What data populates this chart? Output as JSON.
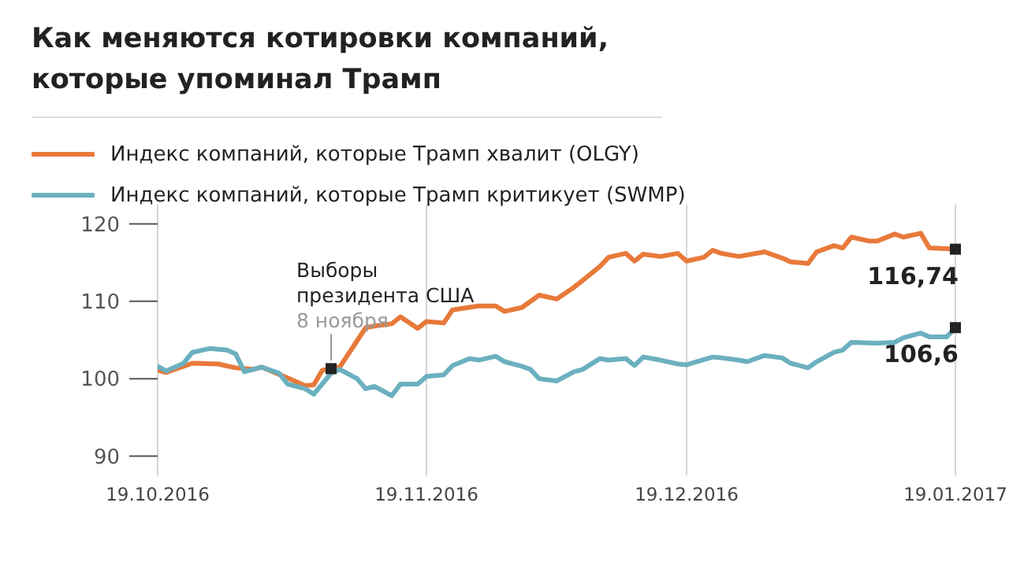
{
  "chart_data": {
    "type": "line",
    "title": "Как меняются котировки компаний, которые упоминал Трамп",
    "legend": "top left",
    "grid": "x",
    "marker": "none",
    "line_style": "solid",
    "xlim": [
      "2016-10-19",
      "2017-01-19"
    ],
    "xticks": [
      {
        "value": "2016-10-19",
        "label": "19.10.2016"
      },
      {
        "value": "2016-11-19",
        "label": "19.11.2016"
      },
      {
        "value": "2016-12-19",
        "label": "19.12.2016"
      },
      {
        "value": "2017-01-19",
        "label": "19.01.2017"
      }
    ],
    "ylim": [
      87.5,
      122.5
    ],
    "yticks": [
      90,
      100,
      110,
      120
    ],
    "annotations": [
      "Выборы президента США",
      {
        "text": "8 ноября",
        "x": "2016-11-08",
        "y": 101.3
      }
    ],
    "series": [
      {
        "name": "Индекс компаний, которые Трамп хвалит (OLGY)",
        "color": "#e8793a",
        "x": [
          "2016-10-19",
          "2016-10-20",
          "2016-10-23",
          "2016-10-26",
          "2016-10-28",
          "2016-10-30",
          "2016-10-31",
          "2016-11-03",
          "2016-11-05",
          "2016-11-06",
          "2016-11-07",
          "2016-11-09",
          "2016-11-11",
          "2016-11-12",
          "2016-11-13",
          "2016-11-15",
          "2016-11-16",
          "2016-11-18",
          "2016-11-19",
          "2016-11-21",
          "2016-11-22",
          "2016-11-25",
          "2016-11-27",
          "2016-11-28",
          "2016-11-30",
          "2016-12-02",
          "2016-12-04",
          "2016-12-06",
          "2016-12-07",
          "2016-12-09",
          "2016-12-10",
          "2016-12-12",
          "2016-12-13",
          "2016-12-14",
          "2016-12-16",
          "2016-12-18",
          "2016-12-19",
          "2016-12-21",
          "2016-12-22",
          "2016-12-23",
          "2016-12-25",
          "2016-12-28",
          "2016-12-30",
          "2016-12-31",
          "2017-01-02",
          "2017-01-03",
          "2017-01-05",
          "2017-01-06",
          "2017-01-07",
          "2017-01-09",
          "2017-01-10",
          "2017-01-12",
          "2017-01-13",
          "2017-01-15",
          "2017-01-16",
          "2017-01-18",
          "2017-01-19"
        ],
        "values": [
          101.1,
          100.8,
          102.0,
          101.9,
          101.4,
          101.2,
          101.5,
          100.1,
          99.1,
          99.2,
          101.1,
          101.5,
          104.9,
          106.6,
          106.8,
          107.1,
          108.0,
          106.5,
          107.4,
          107.2,
          108.9,
          109.4,
          109.4,
          108.7,
          109.2,
          110.8,
          110.3,
          111.8,
          112.7,
          114.5,
          115.7,
          116.2,
          115.2,
          116.1,
          115.8,
          116.2,
          115.2,
          115.7,
          116.6,
          116.2,
          115.8,
          116.4,
          115.6,
          115.1,
          114.9,
          116.4,
          117.2,
          116.9,
          118.3,
          117.8,
          117.8,
          118.7,
          118.3,
          118.8,
          116.9,
          116.8,
          116.74
        ],
        "value_labels": [
          null,
          null,
          null,
          null,
          null,
          null,
          null,
          null,
          null,
          null,
          null,
          null,
          null,
          null,
          null,
          null,
          null,
          null,
          null,
          null,
          null,
          null,
          null,
          null,
          null,
          null,
          null,
          null,
          null,
          null,
          null,
          null,
          null,
          null,
          null,
          null,
          null,
          null,
          null,
          null,
          null,
          null,
          null,
          null,
          null,
          null,
          null,
          null,
          null,
          null,
          null,
          null,
          null,
          null,
          null,
          null,
          "116,74"
        ]
      },
      {
        "name": "Индекс компаний, которые Трамп критикует (SWMP)",
        "color": "#6bb0bf",
        "x": [
          "2016-10-19",
          "2016-10-20",
          "2016-10-22",
          "2016-10-23",
          "2016-10-25",
          "2016-10-27",
          "2016-10-28",
          "2016-10-29",
          "2016-10-31",
          "2016-11-02",
          "2016-11-03",
          "2016-11-05",
          "2016-11-06",
          "2016-11-08",
          "2016-11-09",
          "2016-11-11",
          "2016-11-12",
          "2016-11-13",
          "2016-11-15",
          "2016-11-16",
          "2016-11-18",
          "2016-11-19",
          "2016-11-21",
          "2016-11-22",
          "2016-11-24",
          "2016-11-25",
          "2016-11-27",
          "2016-11-28",
          "2016-11-30",
          "2016-12-01",
          "2016-12-02",
          "2016-12-04",
          "2016-12-06",
          "2016-12-07",
          "2016-12-09",
          "2016-12-10",
          "2016-12-12",
          "2016-12-13",
          "2016-12-14",
          "2016-12-16",
          "2016-12-18",
          "2016-12-19",
          "2016-12-22",
          "2016-12-23",
          "2016-12-25",
          "2016-12-26",
          "2016-12-28",
          "2016-12-30",
          "2016-12-31",
          "2017-01-02",
          "2017-01-03",
          "2017-01-05",
          "2017-01-06",
          "2017-01-07",
          "2017-01-10",
          "2017-01-12",
          "2017-01-13",
          "2017-01-15",
          "2017-01-16",
          "2017-01-18",
          "2017-01-19"
        ],
        "values": [
          101.6,
          101.0,
          102.0,
          103.4,
          103.9,
          103.7,
          103.2,
          100.9,
          101.5,
          100.7,
          99.3,
          98.7,
          98.0,
          100.7,
          101.2,
          100.0,
          98.7,
          99.0,
          97.8,
          99.3,
          99.3,
          100.3,
          100.5,
          101.7,
          102.6,
          102.4,
          102.9,
          102.2,
          101.6,
          101.2,
          100.0,
          99.7,
          100.9,
          101.2,
          102.6,
          102.4,
          102.6,
          101.7,
          102.8,
          102.4,
          101.9,
          101.8,
          102.8,
          102.7,
          102.4,
          102.2,
          103.0,
          102.7,
          102.0,
          101.4,
          102.2,
          103.4,
          103.7,
          104.7,
          104.6,
          104.7,
          105.3,
          105.9,
          105.4,
          105.4,
          106.6
        ],
        "value_labels": [
          null,
          null,
          null,
          null,
          null,
          null,
          null,
          null,
          null,
          null,
          null,
          null,
          null,
          null,
          null,
          null,
          null,
          null,
          null,
          null,
          null,
          null,
          null,
          null,
          null,
          null,
          null,
          null,
          null,
          null,
          null,
          null,
          null,
          null,
          null,
          null,
          null,
          null,
          null,
          null,
          null,
          null,
          null,
          null,
          null,
          null,
          null,
          null,
          null,
          null,
          null,
          null,
          null,
          null,
          null,
          null,
          null,
          null,
          null,
          null,
          "106,6"
        ]
      }
    ]
  }
}
